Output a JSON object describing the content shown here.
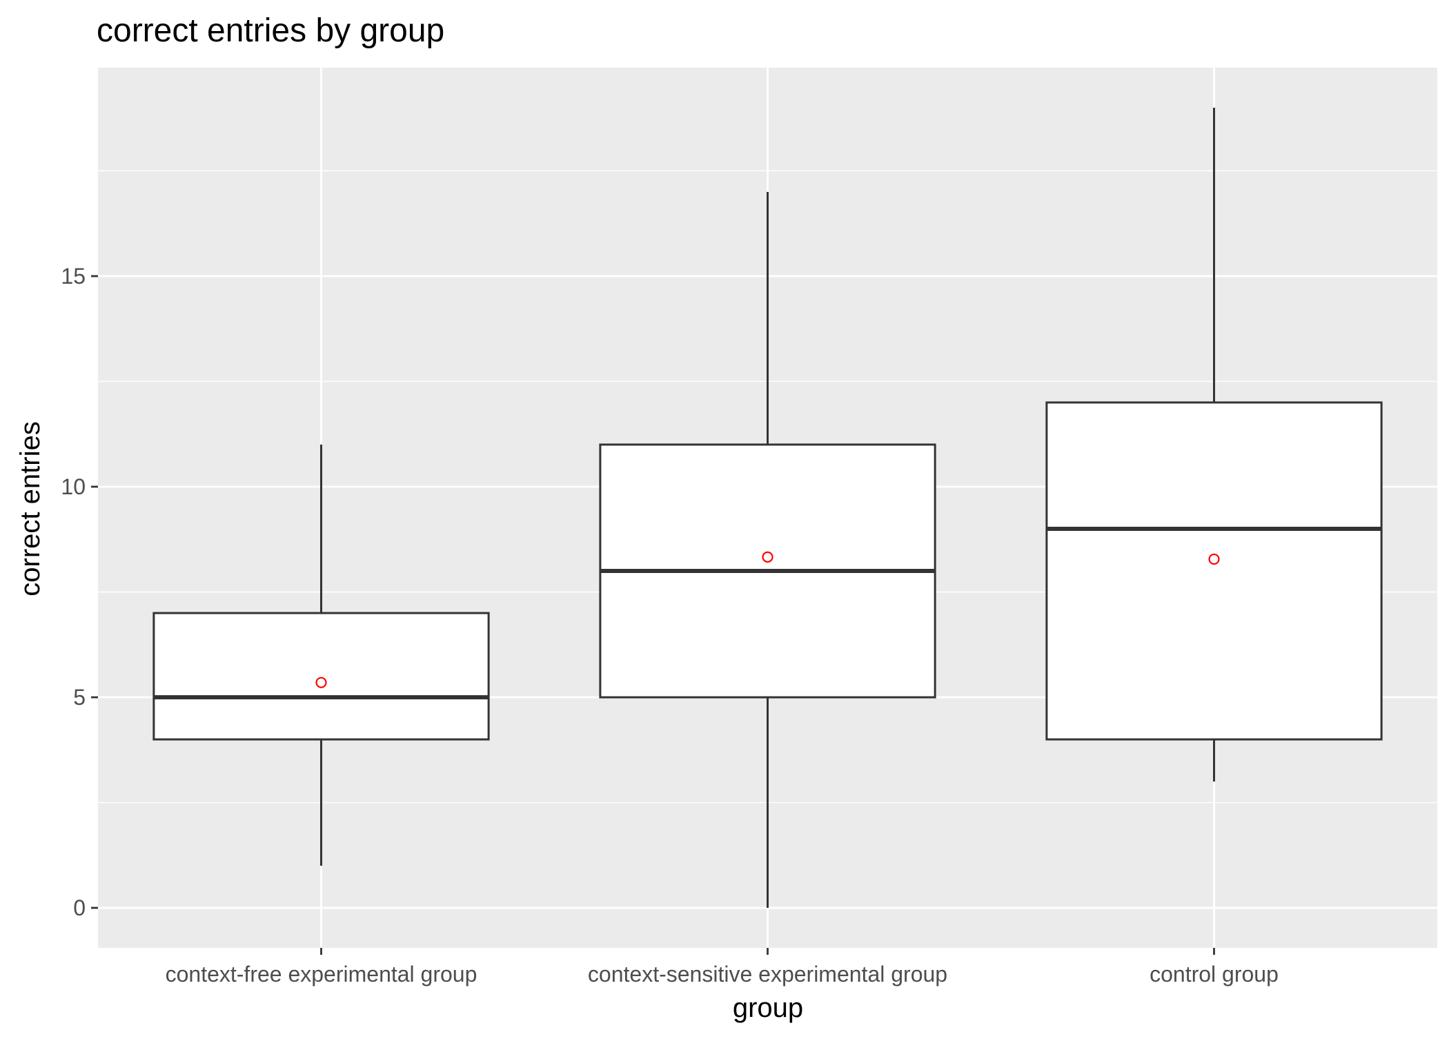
{
  "chart_data": {
    "type": "boxplot",
    "title": "correct entries by group",
    "xlabel": "group",
    "ylabel": "correct entries",
    "categories": [
      "context-free experimental group",
      "context-sensitive experimental group",
      "control group"
    ],
    "yticks": [
      "0",
      "5",
      "10",
      "15"
    ],
    "ylim": [
      -0.95,
      19.95
    ],
    "grid": true,
    "boxes": [
      {
        "category": "context-free experimental group",
        "whisker_low": 1,
        "q1": 4,
        "median": 5,
        "q3": 7,
        "whisker_high": 11,
        "mean": 5.35
      },
      {
        "category": "context-sensitive experimental group",
        "whisker_low": 0,
        "q1": 5,
        "median": 8,
        "q3": 11,
        "whisker_high": 17,
        "mean": 8.33
      },
      {
        "category": "control group",
        "whisker_low": 3,
        "q1": 4,
        "median": 9,
        "q3": 12,
        "whisker_high": 19,
        "mean": 8.28
      }
    ],
    "colors": {
      "panel_background": "#ebebeb",
      "grid_line": "#ffffff",
      "box_outline": "#333333",
      "box_fill": "#ffffff",
      "mean_marker": "#ff0000",
      "tick_text": "#4d4d4d",
      "tick_mark": "#333333"
    }
  }
}
